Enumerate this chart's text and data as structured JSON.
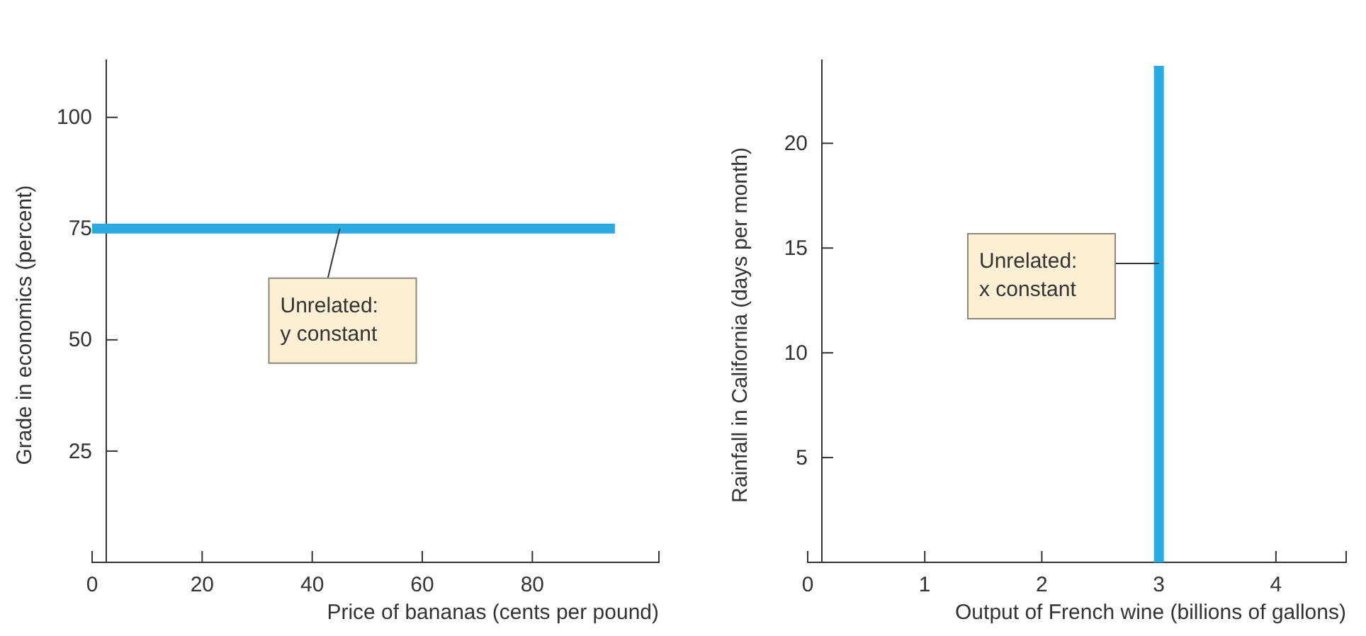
{
  "chart_data": [
    {
      "type": "line",
      "xlabel": "Price of bananas (cents per pound)",
      "ylabel": "Grade in economics (percent)",
      "xlim": [
        0,
        103
      ],
      "ylim": [
        0,
        113
      ],
      "xticks": [
        0,
        20,
        40,
        60,
        80
      ],
      "yticks": [
        25,
        50,
        75,
        100
      ],
      "series": [
        {
          "color": "#29abe2",
          "x": [
            0,
            95
          ],
          "values": [
            75,
            75
          ]
        }
      ],
      "annotations": [
        {
          "text": "Unrelated:\ny constant",
          "x": 45,
          "y": 75
        }
      ]
    },
    {
      "type": "line",
      "xlabel": "Output of French wine (billions of gallons)",
      "ylabel": "Rainfall in California (days per month)",
      "xlim": [
        0,
        4.6
      ],
      "ylim": [
        0,
        24
      ],
      "xticks": [
        0,
        1,
        2,
        3,
        4
      ],
      "yticks": [
        5,
        10,
        15,
        20
      ],
      "series": [
        {
          "color": "#29abe2",
          "x": [
            3,
            3
          ],
          "values": [
            0,
            23.7
          ]
        }
      ],
      "annotations": [
        "Unrelated:\nx constant"
      ]
    }
  ]
}
